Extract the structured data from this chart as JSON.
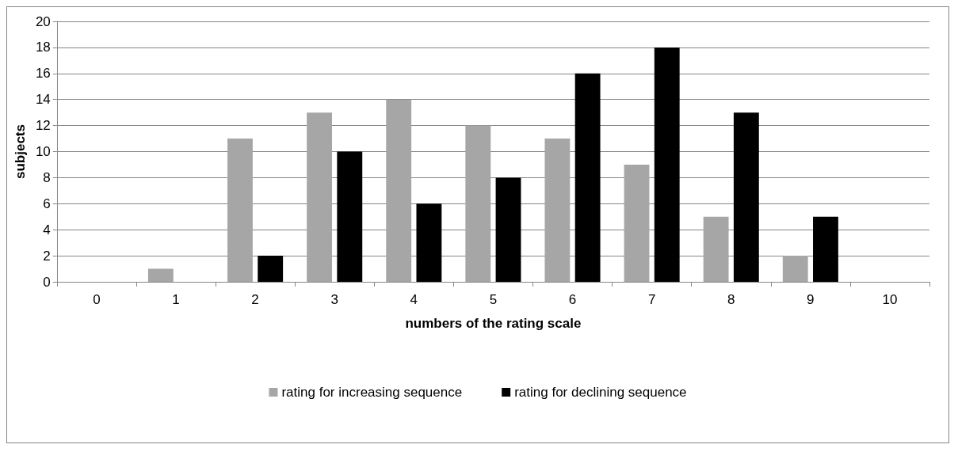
{
  "chart_data": {
    "type": "bar",
    "xlabel": "numbers of the rating scale",
    "ylabel": "subjects",
    "categories": [
      "0",
      "1",
      "2",
      "3",
      "4",
      "5",
      "6",
      "7",
      "8",
      "9",
      "10"
    ],
    "series": [
      {
        "name": "rating for increasing sequence",
        "color": "#a6a6a6",
        "values": [
          0,
          1,
          11,
          13,
          14,
          12,
          11,
          9,
          5,
          2,
          0
        ]
      },
      {
        "name": "rating for declining sequence",
        "color": "#000000",
        "values": [
          0,
          0,
          2,
          10,
          6,
          8,
          16,
          18,
          13,
          5,
          0
        ]
      }
    ],
    "ylim": [
      0,
      20
    ],
    "yticks": [
      0,
      2,
      4,
      6,
      8,
      10,
      12,
      14,
      16,
      18,
      20
    ],
    "grid": "y",
    "legend": "bottom"
  }
}
